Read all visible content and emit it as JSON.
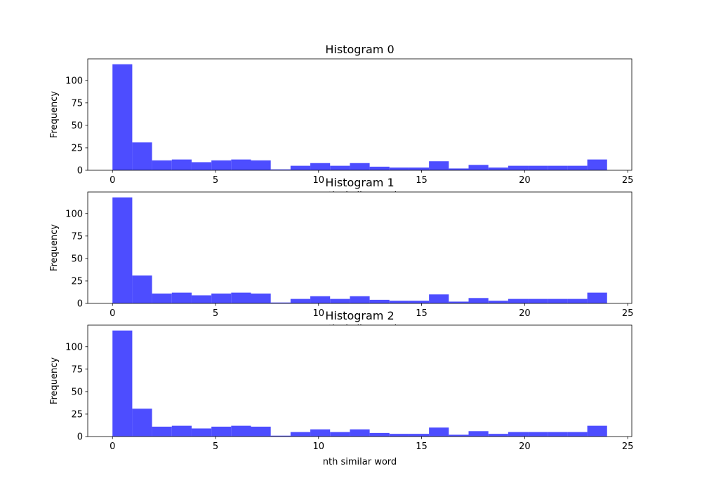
{
  "chart_data": [
    {
      "type": "bar",
      "title": "Histogram 0",
      "xlabel": "nth similar word",
      "ylabel": "Frequency",
      "bin_edges": [
        0,
        0.96,
        1.92,
        2.88,
        3.84,
        4.8,
        5.76,
        6.72,
        7.68,
        8.64,
        9.6,
        10.56,
        11.52,
        12.48,
        13.44,
        14.4,
        15.36,
        16.32,
        17.28,
        18.24,
        19.2,
        20.16,
        21.12,
        22.08,
        23.04,
        24
      ],
      "values": [
        118,
        31,
        11,
        12,
        9,
        11,
        12,
        11,
        1,
        5,
        8,
        5,
        8,
        4,
        3,
        3,
        10,
        2,
        6,
        3,
        5,
        5,
        5,
        5,
        12
      ],
      "xlim": [
        -1.2,
        25.2
      ],
      "ylim": [
        0,
        124
      ],
      "xticks": [
        0,
        5,
        10,
        15,
        20,
        25
      ],
      "yticks": [
        0,
        25,
        50,
        75,
        100
      ],
      "color": "#4d4dff"
    },
    {
      "type": "bar",
      "title": "Histogram 1",
      "xlabel": "nth similar word",
      "ylabel": "Frequency",
      "bin_edges": [
        0,
        0.96,
        1.92,
        2.88,
        3.84,
        4.8,
        5.76,
        6.72,
        7.68,
        8.64,
        9.6,
        10.56,
        11.52,
        12.48,
        13.44,
        14.4,
        15.36,
        16.32,
        17.28,
        18.24,
        19.2,
        20.16,
        21.12,
        22.08,
        23.04,
        24
      ],
      "values": [
        118,
        31,
        11,
        12,
        9,
        11,
        12,
        11,
        1,
        5,
        8,
        5,
        8,
        4,
        3,
        3,
        10,
        2,
        6,
        3,
        5,
        5,
        5,
        5,
        12
      ],
      "xlim": [
        -1.2,
        25.2
      ],
      "ylim": [
        0,
        124
      ],
      "xticks": [
        0,
        5,
        10,
        15,
        20,
        25
      ],
      "yticks": [
        0,
        25,
        50,
        75,
        100
      ],
      "color": "#4d4dff"
    },
    {
      "type": "bar",
      "title": "Histogram 2",
      "xlabel": "nth similar word",
      "ylabel": "Frequency",
      "bin_edges": [
        0,
        0.96,
        1.92,
        2.88,
        3.84,
        4.8,
        5.76,
        6.72,
        7.68,
        8.64,
        9.6,
        10.56,
        11.52,
        12.48,
        13.44,
        14.4,
        15.36,
        16.32,
        17.28,
        18.24,
        19.2,
        20.16,
        21.12,
        22.08,
        23.04,
        24
      ],
      "values": [
        118,
        31,
        11,
        12,
        9,
        11,
        12,
        11,
        1,
        5,
        8,
        5,
        8,
        4,
        3,
        3,
        10,
        2,
        6,
        3,
        5,
        5,
        5,
        5,
        12
      ],
      "xlim": [
        -1.2,
        25.2
      ],
      "ylim": [
        0,
        124
      ],
      "xticks": [
        0,
        5,
        10,
        15,
        20,
        25
      ],
      "yticks": [
        0,
        25,
        50,
        75,
        100
      ],
      "color": "#4d4dff"
    }
  ]
}
